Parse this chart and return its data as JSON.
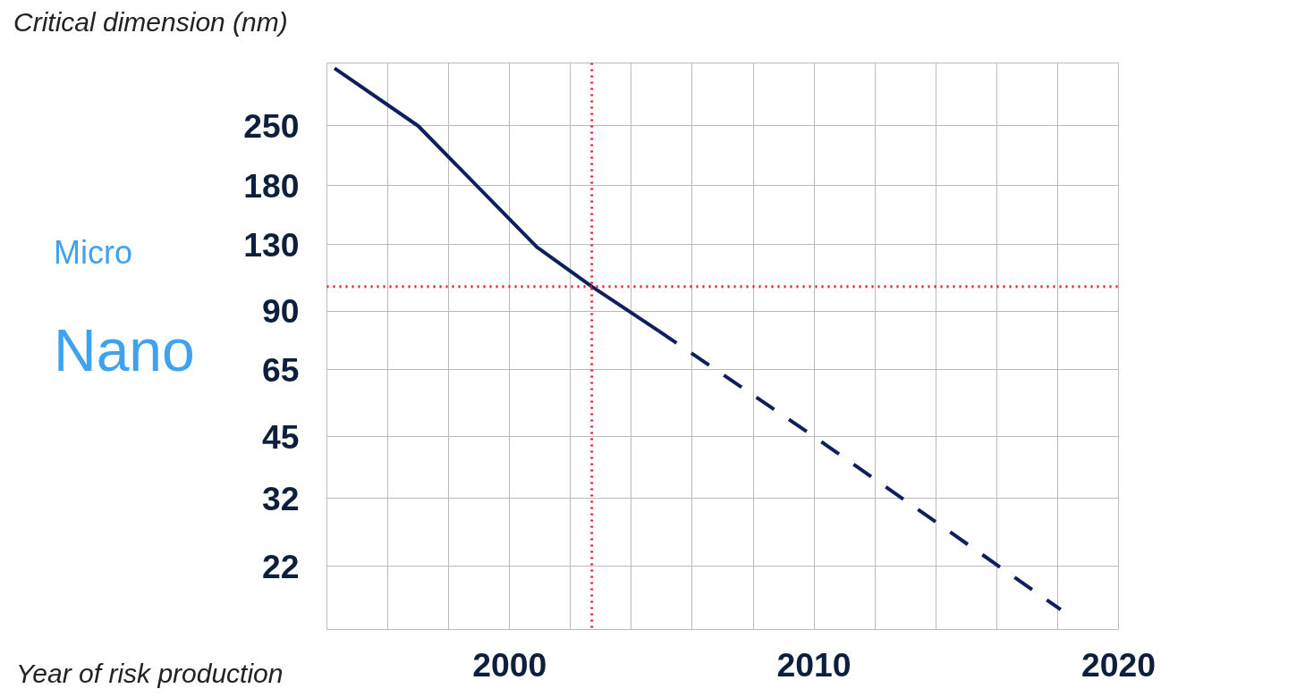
{
  "chart_data": {
    "type": "line",
    "ylabel": "Critical dimension (nm)",
    "xlabel": "Year of risk production",
    "x": [
      1994.25,
      1997.0,
      2000.9,
      2002.7,
      2004.9
    ],
    "series": [
      {
        "color": "#0d1f5c",
        "values": [
          344,
          250,
          128,
          103,
          80.6
        ],
        "line_style": "solid"
      },
      {
        "color": "#0d1f5c",
        "x": [
          2004.9,
          2010.0,
          2018.1
        ],
        "values": [
          80.6,
          45,
          17.3
        ],
        "line_style": "dashed"
      }
    ],
    "xlim": [
      1994,
      2020
    ],
    "xticks": [
      {
        "value": 1996,
        "label": null
      },
      {
        "value": 1998,
        "label": null
      },
      2000,
      {
        "value": 2002,
        "label": null
      },
      {
        "value": 2004,
        "label": null
      },
      {
        "value": 2006,
        "label": null
      },
      {
        "value": 2008,
        "label": null
      },
      2010,
      {
        "value": 2012,
        "label": null
      },
      {
        "value": 2014,
        "label": null
      },
      {
        "value": 2016,
        "label": null
      },
      {
        "value": 2018,
        "label": null
      },
      2020
    ],
    "log": "y",
    "ylim": [
      15.5,
      354
    ],
    "yticks": [
      250,
      180,
      130,
      90,
      65,
      45,
      32,
      22
    ],
    "grid": true,
    "ref_lines": [
      {
        "axis": "x",
        "value": 2002.7,
        "color": "#e8182c",
        "line_style": "dotted"
      },
      {
        "axis": "y",
        "value": 103,
        "color": "#e8182c",
        "line_style": "dotted"
      }
    ],
    "annotations": [
      "Micro",
      "Nano"
    ]
  }
}
